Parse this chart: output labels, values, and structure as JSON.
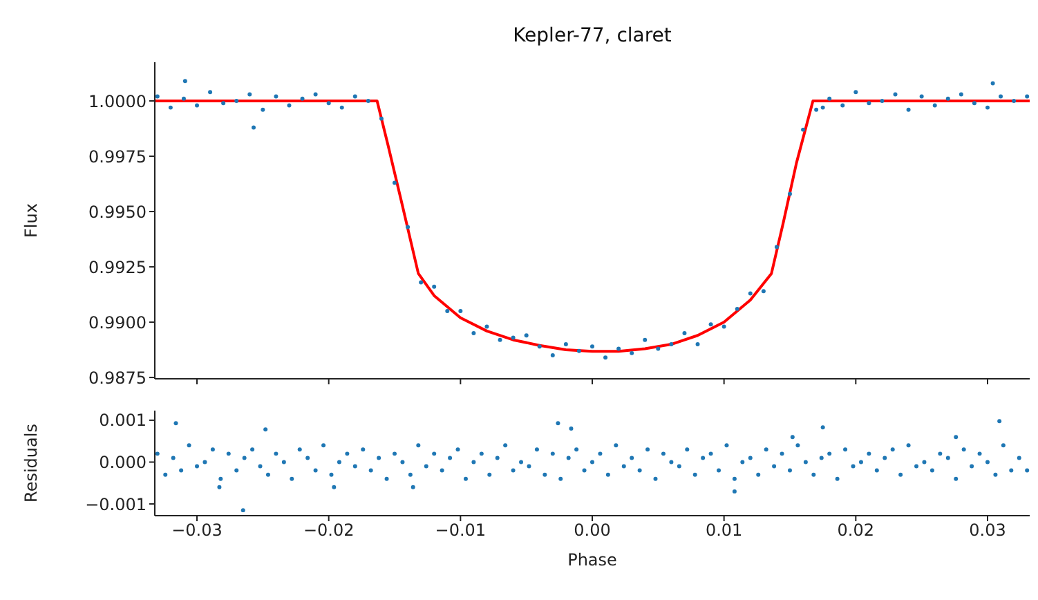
{
  "chart_data": [
    {
      "type": "scatter",
      "title": "Kepler-77, claret",
      "ylabel": "Flux",
      "tick_labels": "y",
      "grid": false,
      "legend": false,
      "xlim": [
        -0.0332,
        0.0332
      ],
      "xticks": [
        {
          "value": -0.03,
          "label": null
        },
        {
          "value": -0.02,
          "label": null
        },
        {
          "value": -0.01,
          "label": null
        },
        {
          "value": 0,
          "label": null
        },
        {
          "value": 0.01,
          "label": null
        },
        {
          "value": 0.02,
          "label": null
        },
        {
          "value": 0.03,
          "label": null
        }
      ],
      "ylim": [
        0.98744,
        1.00175
      ],
      "yticks": [
        {
          "value": 0.9875,
          "label": "0.9875"
        },
        {
          "value": 0.99,
          "label": "0.9900"
        },
        {
          "value": 0.9925,
          "label": "0.9925"
        },
        {
          "value": 0.995,
          "label": "0.9950"
        },
        {
          "value": 0.9975,
          "label": "0.9975"
        },
        {
          "value": 1,
          "label": "1.0000"
        }
      ],
      "series": [
        {
          "marker": "circle",
          "color": "#1f77b4",
          "x": [
            -0.033,
            -0.032,
            -0.031,
            -0.03,
            -0.029,
            -0.028,
            -0.027,
            -0.026,
            -0.025,
            -0.024,
            -0.023,
            -0.022,
            -0.021,
            -0.02,
            -0.019,
            -0.018,
            -0.017,
            -0.016,
            -0.015,
            -0.014,
            -0.013,
            -0.012,
            -0.011,
            -0.01,
            -0.009,
            -0.008,
            -0.007,
            -0.006,
            -0.005,
            -0.004,
            -0.003,
            -0.002,
            -0.001,
            0,
            0.001,
            0.002,
            0.003,
            0.004,
            0.005,
            0.006,
            0.007,
            0.008,
            0.009,
            0.01,
            0.011,
            0.012,
            0.013,
            0.014,
            0.015,
            0.016,
            0.017,
            0.018,
            0.019,
            0.02,
            0.021,
            0.022,
            0.023,
            0.024,
            0.025,
            0.026,
            0.027,
            0.028,
            0.029,
            0.03,
            0.031,
            0.032,
            0.033,
            -0.0309,
            -0.0257,
            0.0304,
            0.0175
          ],
          "values": [
            1.0002,
            0.9997,
            1.0001,
            0.9998,
            1.0004,
            0.9999,
            1.0,
            1.0003,
            0.9996,
            1.0002,
            0.9998,
            1.0001,
            1.0003,
            0.9999,
            0.9997,
            1.0002,
            1.0,
            0.9992,
            0.9963,
            0.9943,
            0.9918,
            0.9916,
            0.9905,
            0.9905,
            0.9895,
            0.9898,
            0.9892,
            0.9893,
            0.9894,
            0.9889,
            0.9885,
            0.989,
            0.9887,
            0.9889,
            0.9884,
            0.9888,
            0.9886,
            0.9892,
            0.9888,
            0.989,
            0.9895,
            0.989,
            0.9899,
            0.9898,
            0.9906,
            0.9913,
            0.9914,
            0.9934,
            0.9958,
            0.9987,
            0.9996,
            1.0001,
            0.9998,
            1.0004,
            0.9999,
            1.0,
            1.0003,
            0.9996,
            1.0002,
            0.9998,
            1.0001,
            1.0003,
            0.9999,
            0.9997,
            1.0002,
            1.0,
            1.0002,
            1.0009,
            0.9988,
            1.0008,
            0.9997
          ]
        },
        {
          "type": "line",
          "color": "#ff0000",
          "x": [
            -0.0332,
            -0.01633,
            -0.0155,
            -0.0145,
            -0.0132,
            -0.012,
            -0.01,
            -0.008,
            -0.006,
            -0.004,
            -0.002,
            0,
            0.002,
            0.004,
            0.006,
            0.008,
            0.01,
            0.012,
            0.0136,
            0.0145,
            0.0155,
            0.01675,
            0.0332
          ],
          "values": [
            1.0,
            1.0,
            0.998,
            0.9955,
            0.9922,
            0.9912,
            0.9902,
            0.9896,
            0.9892,
            0.98895,
            0.98875,
            0.98868,
            0.98868,
            0.9888,
            0.989,
            0.9894,
            0.99,
            0.991,
            0.9922,
            0.9945,
            0.9972,
            1.0,
            1.0
          ]
        }
      ]
    },
    {
      "type": "scatter",
      "xlabel": "Phase",
      "ylabel": "Residuals",
      "grid": false,
      "legend": false,
      "xlim": [
        -0.0332,
        0.0332
      ],
      "xticks": [
        {
          "value": -0.03,
          "label": "−0.03"
        },
        {
          "value": -0.02,
          "label": "−0.02"
        },
        {
          "value": -0.01,
          "label": "−0.01"
        },
        {
          "value": 0,
          "label": "0.00"
        },
        {
          "value": 0.01,
          "label": "0.01"
        },
        {
          "value": 0.02,
          "label": "0.02"
        },
        {
          "value": 0.03,
          "label": "0.03"
        }
      ],
      "ylim": [
        -0.00128,
        0.00123
      ],
      "yticks": [
        {
          "value": -0.001,
          "label": "−0.001"
        },
        {
          "value": 0,
          "label": "0.000"
        },
        {
          "value": 0.001,
          "label": "0.001"
        }
      ],
      "series": [
        {
          "marker": "circle",
          "color": "#1f77b4",
          "x": [
            -0.033,
            -0.0324,
            -0.0318,
            -0.0312,
            -0.0306,
            -0.03,
            -0.0294,
            -0.0288,
            -0.0282,
            -0.0276,
            -0.027,
            -0.0264,
            -0.0258,
            -0.0252,
            -0.0246,
            -0.024,
            -0.0234,
            -0.0228,
            -0.0222,
            -0.0216,
            -0.021,
            -0.0204,
            -0.0198,
            -0.0192,
            -0.0186,
            -0.018,
            -0.0174,
            -0.0168,
            -0.0162,
            -0.0156,
            -0.015,
            -0.0144,
            -0.0138,
            -0.0132,
            -0.0126,
            -0.012,
            -0.0114,
            -0.0108,
            -0.0102,
            -0.0096,
            -0.009,
            -0.0084,
            -0.0078,
            -0.0072,
            -0.0066,
            -0.006,
            -0.0054,
            -0.0048,
            -0.0042,
            -0.0036,
            -0.003,
            -0.0024,
            -0.0018,
            -0.0012,
            -0.0006,
            0,
            0.0006,
            0.0012,
            0.0018,
            0.0024,
            0.003,
            0.0036,
            0.0042,
            0.0048,
            0.0054,
            0.006,
            0.0066,
            0.0072,
            0.0078,
            0.0084,
            0.009,
            0.0096,
            0.0102,
            0.0108,
            0.0114,
            0.012,
            0.0126,
            0.0132,
            0.0138,
            0.0144,
            0.015,
            0.0156,
            0.0162,
            0.0168,
            0.0174,
            0.018,
            0.0186,
            0.0192,
            0.0198,
            0.0204,
            0.021,
            0.0216,
            0.0222,
            0.0228,
            0.0234,
            0.024,
            0.0246,
            0.0252,
            0.0258,
            0.0264,
            0.027,
            0.0276,
            0.0282,
            0.0288,
            0.0294,
            0.03,
            0.0306,
            0.0312,
            0.0318,
            0.0324,
            0.033,
            -0.0316,
            -0.0265,
            -0.0248,
            -0.0026,
            -0.0016,
            0.0108,
            0.0175,
            0.0309,
            -0.0283,
            -0.0196,
            -0.0136,
            0.0152,
            0.0276
          ],
          "values": [
            0.0002,
            -0.0003,
            0.0001,
            -0.0002,
            0.0004,
            -0.0001,
            0,
            0.0003,
            -0.0004,
            0.0002,
            -0.0002,
            0.0001,
            0.0003,
            -0.0001,
            -0.0003,
            0.0002,
            0,
            -0.0004,
            0.0003,
            0.0001,
            -0.0002,
            0.0004,
            -0.0003,
            0,
            0.0002,
            -0.0001,
            0.0003,
            -0.0002,
            0.0001,
            -0.0004,
            0.0002,
            0,
            -0.0003,
            0.0004,
            -0.0001,
            0.0002,
            -0.0002,
            0.0001,
            0.0003,
            -0.0004,
            0,
            0.0002,
            -0.0003,
            0.0001,
            0.0004,
            -0.0002,
            0,
            -0.0001,
            0.0003,
            -0.0003,
            0.0002,
            -0.0004,
            0.0001,
            0.0003,
            -0.0002,
            0,
            0.0002,
            -0.0003,
            0.0004,
            -0.0001,
            0.0001,
            -0.0002,
            0.0003,
            -0.0004,
            0.0002,
            0,
            -0.0001,
            0.0003,
            -0.0003,
            0.0001,
            0.0002,
            -0.0002,
            0.0004,
            -0.0004,
            0,
            0.0001,
            -0.0003,
            0.0003,
            -0.0001,
            0.0002,
            -0.0002,
            0.0004,
            0,
            -0.0003,
            0.0001,
            0.0002,
            -0.0004,
            0.0003,
            -0.0001,
            0,
            0.0002,
            -0.0002,
            0.0001,
            0.0003,
            -0.0003,
            0.0004,
            -0.0001,
            0,
            -0.0002,
            0.0002,
            0.0001,
            -0.0004,
            0.0003,
            -0.0001,
            0.0002,
            0,
            -0.0003,
            0.0004,
            -0.0002,
            0.0001,
            -0.0002,
            0.00093,
            -0.00115,
            0.00078,
            0.00093,
            0.0008,
            -0.0007,
            0.00083,
            0.00098,
            -0.0006,
            -0.0006,
            -0.0006,
            0.0006,
            0.0006
          ]
        }
      ]
    }
  ]
}
